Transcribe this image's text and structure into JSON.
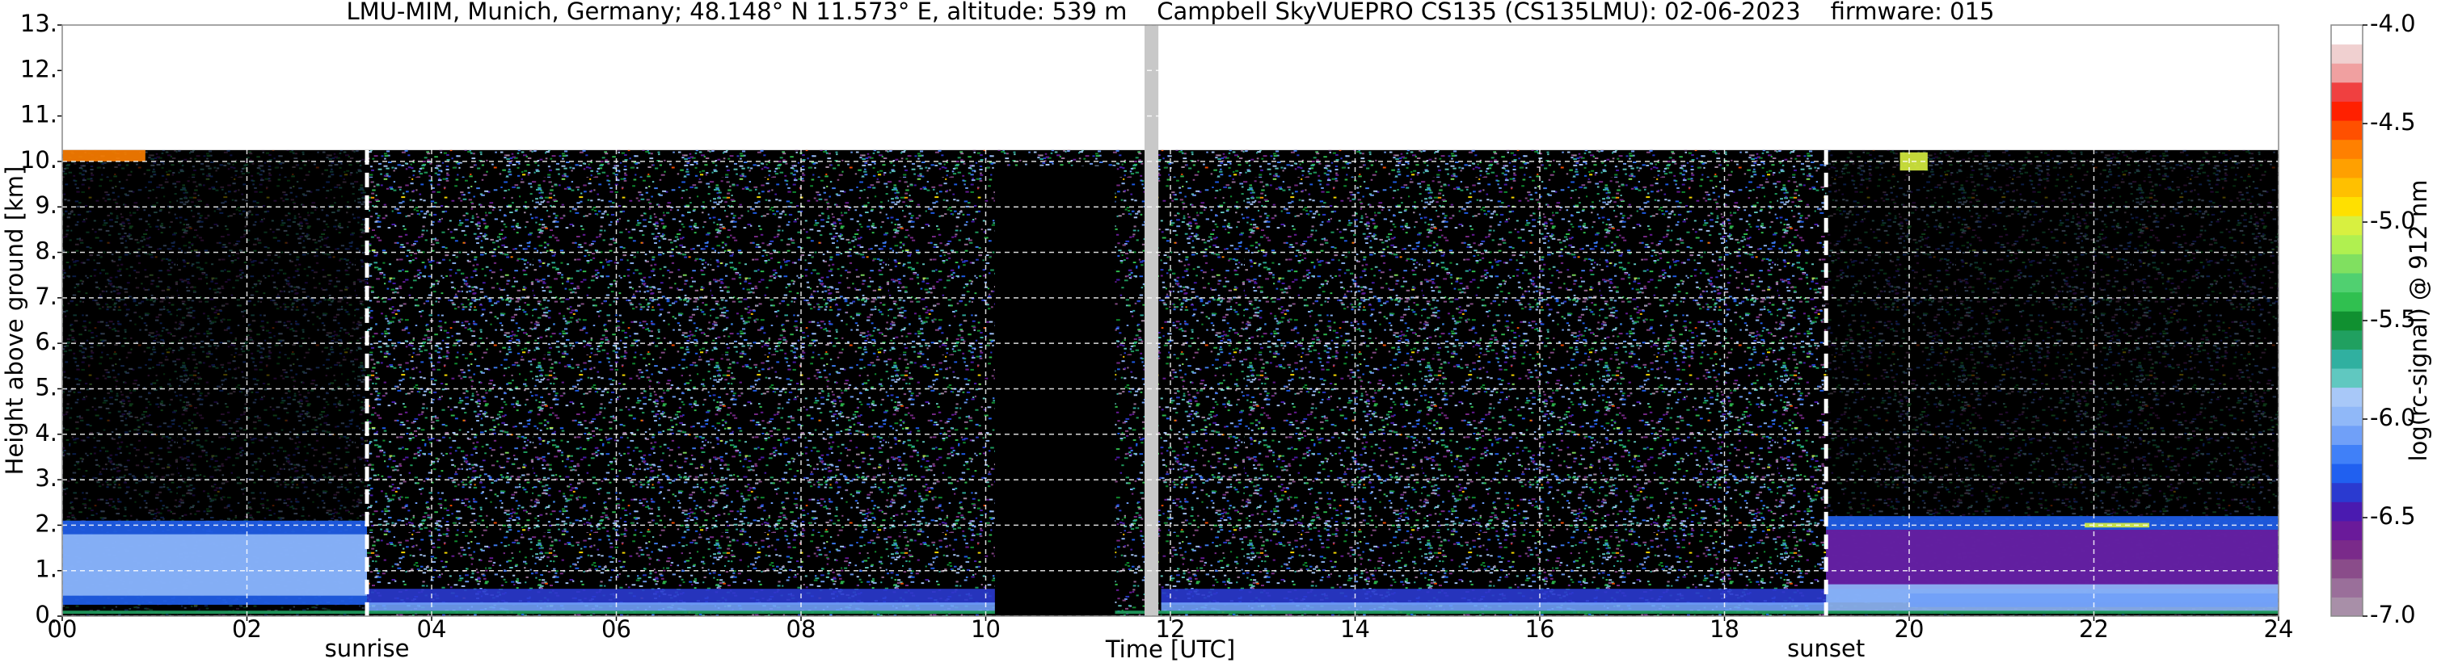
{
  "chart_data": {
    "type": "heatmap",
    "title": "LMU-MIM, Munich, Germany; 48.148° N 11.573° E, altitude: 539 m    Campbell SkyVUEPRO CS135 (CS135LMU): 02-06-2023    firmware: 015",
    "xlabel": "Time [UTC]",
    "ylabel": "Height above ground [km]",
    "colorbar_label": "log(rc-signal) @ 912 nm",
    "xlim": [
      0,
      24
    ],
    "ylim": [
      0,
      13
    ],
    "xticks": [
      {
        "value": 0,
        "label": "00"
      },
      {
        "value": 2,
        "label": "02"
      },
      {
        "value": 4,
        "label": "04"
      },
      {
        "value": 6,
        "label": "06"
      },
      {
        "value": 8,
        "label": "08"
      },
      10,
      12,
      14,
      16,
      18,
      20,
      22,
      24
    ],
    "yticks": [
      {
        "value": 0,
        "label": "0."
      },
      {
        "value": 1,
        "label": "1."
      },
      {
        "value": 2,
        "label": "2."
      },
      {
        "value": 3,
        "label": "3."
      },
      {
        "value": 4,
        "label": "4."
      },
      {
        "value": 5,
        "label": "5."
      },
      {
        "value": 6,
        "label": "6."
      },
      {
        "value": 7,
        "label": "7."
      },
      {
        "value": 8,
        "label": "8."
      },
      {
        "value": 9,
        "label": "9."
      },
      {
        "value": 10,
        "label": "10."
      },
      {
        "value": 11,
        "label": "11."
      },
      {
        "value": 12,
        "label": "12."
      },
      {
        "value": 13,
        "label": "13."
      }
    ],
    "grid": true,
    "clim": [
      -7,
      -4
    ],
    "cticks": [
      {
        "value": -4,
        "label": "-4.0"
      },
      -4.5,
      {
        "value": -5,
        "label": "-5.0"
      },
      -5.5,
      {
        "value": -6,
        "label": "-6.0"
      },
      -6.5,
      {
        "value": -7,
        "label": "-7.0"
      }
    ],
    "colormap": [
      "#a88fa8",
      "#9a6f9a",
      "#8a4c8a",
      "#7a2a8a",
      "#6a1a9a",
      "#4a1ab0",
      "#2a3ad0",
      "#2060f0",
      "#4080f8",
      "#70a0f8",
      "#90b8f8",
      "#a8c8f8",
      "#60c8c0",
      "#30b0a0",
      "#20a060",
      "#109030",
      "#30c050",
      "#50d070",
      "#80e060",
      "#b0f050",
      "#d8f040",
      "#ffe000",
      "#ffc000",
      "#ffa000",
      "#ff8000",
      "#ff5000",
      "#ff2000",
      "#f04040",
      "#f0a0a0",
      "#f0d0d0",
      "#ffffff"
    ],
    "max_range": 10.25,
    "layers": [
      {
        "t": [
          0,
          3.3
        ],
        "h": [
          0.25,
          2.1
        ],
        "value": -6.3
      },
      {
        "t": [
          0,
          3.3
        ],
        "h": [
          0.45,
          1.8
        ],
        "value": -6.0
      },
      {
        "t": [
          3.3,
          10.1
        ],
        "h": [
          0.25,
          0.6
        ],
        "value": -6.4
      },
      {
        "t": [
          3.3,
          10.1
        ],
        "h": [
          0.1,
          0.3
        ],
        "value": -6.1
      },
      {
        "t": [
          11.9,
          19.1
        ],
        "h": [
          0.25,
          0.6
        ],
        "value": -6.4
      },
      {
        "t": [
          11.9,
          19.1
        ],
        "h": [
          0.1,
          0.3
        ],
        "value": -6.1
      },
      {
        "t": [
          19.1,
          24
        ],
        "h": [
          0.3,
          2.2
        ],
        "value": -6.3
      },
      {
        "t": [
          19.1,
          24
        ],
        "h": [
          0.6,
          1.9
        ],
        "value": -6.6
      },
      {
        "t": [
          19.1,
          24
        ],
        "h": [
          0.1,
          0.7
        ],
        "value": -6.0
      },
      {
        "t": [
          20,
          24
        ],
        "h": [
          0.2,
          0.5
        ],
        "value": -6.1
      },
      {
        "t": [
          0,
          24
        ],
        "h": [
          0.05,
          0.12
        ],
        "value": -5.6
      },
      {
        "t": [
          21.9,
          22.6
        ],
        "h": [
          1.95,
          2.05
        ],
        "value": -5.0
      },
      {
        "t": [
          0,
          0.9
        ],
        "h": [
          10.0,
          10.25
        ],
        "value": -4.6
      },
      {
        "t": [
          19.9,
          20.2
        ],
        "h": [
          9.8,
          10.2
        ],
        "value": -5.0
      }
    ],
    "no_signal": [
      {
        "t": [
          10.1,
          11.4
        ],
        "h": [
          0,
          9.9
        ]
      }
    ],
    "gaps": [
      {
        "t": [
          11.72,
          11.87
        ]
      }
    ],
    "annotations": [
      {
        "text": "sunrise",
        "x": 3.3
      },
      {
        "text": "sunset",
        "x": 19.1
      }
    ]
  }
}
